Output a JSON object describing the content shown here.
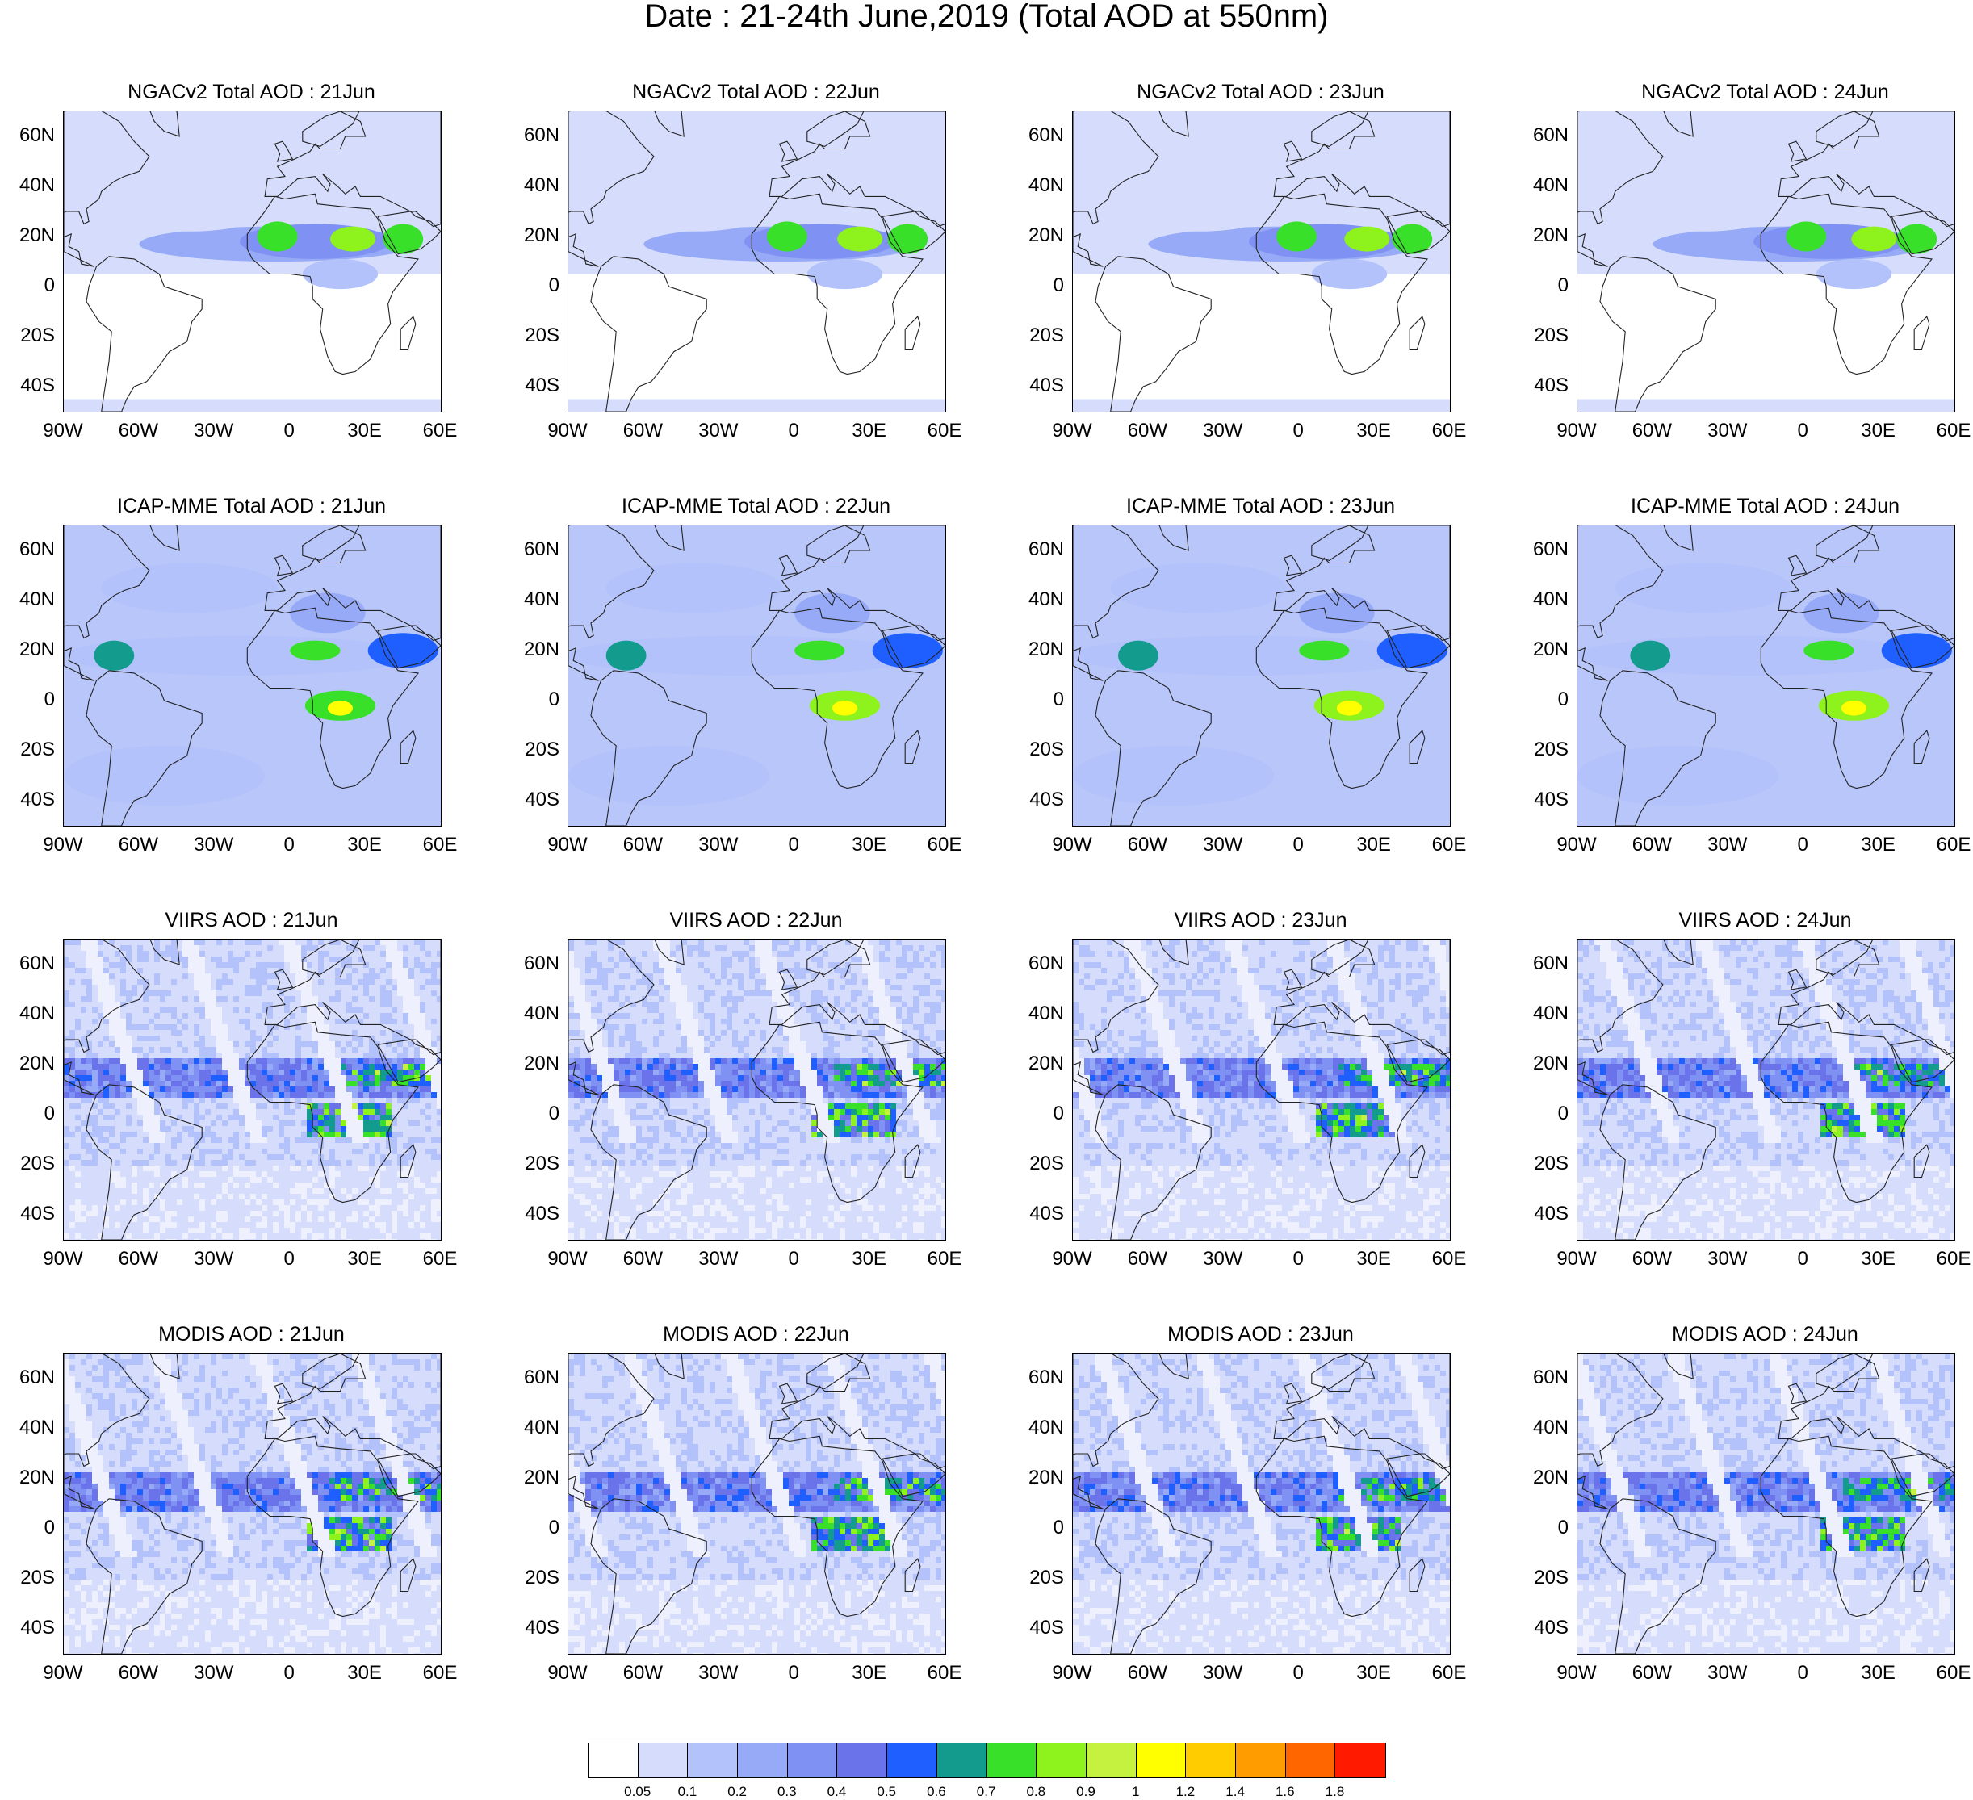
{
  "main_title": "Date : 21-24th June,2019 (Total AOD at 550nm)",
  "lat_ticks": [
    "60N",
    "40N",
    "20N",
    "0",
    "20S",
    "40S"
  ],
  "lon_ticks": [
    "90W",
    "60W",
    "30W",
    "0",
    "30E",
    "60E"
  ],
  "rows": [
    {
      "source": "NGACv2",
      "titles": [
        "NGACv2 Total AOD : 21Jun",
        "NGACv2 Total AOD : 22Jun",
        "NGACv2 Total AOD : 23Jun",
        "NGACv2 Total AOD : 24Jun"
      ],
      "style": "model-ngac"
    },
    {
      "source": "ICAP-MME",
      "titles": [
        "ICAP-MME Total AOD : 21Jun",
        "ICAP-MME Total AOD : 22Jun",
        "ICAP-MME Total AOD : 23Jun",
        "ICAP-MME Total AOD : 24Jun"
      ],
      "style": "model-icap"
    },
    {
      "source": "VIIRS",
      "titles": [
        "VIIRS AOD : 21Jun",
        "VIIRS AOD : 22Jun",
        "VIIRS AOD : 23Jun",
        "VIIRS AOD : 24Jun"
      ],
      "style": "satellite"
    },
    {
      "source": "MODIS",
      "titles": [
        "MODIS AOD : 21Jun",
        "MODIS AOD : 22Jun",
        "MODIS AOD : 23Jun",
        "MODIS AOD : 24Jun"
      ],
      "style": "satellite"
    }
  ],
  "colorbar": {
    "labels": [
      "0.05",
      "0.1",
      "0.2",
      "0.3",
      "0.4",
      "0.5",
      "0.6",
      "0.7",
      "0.8",
      "0.9",
      "1",
      "1.2",
      "1.4",
      "1.6",
      "1.8"
    ],
    "colors": [
      "#ffffff",
      "#d6ddfc",
      "#b3c2fa",
      "#96aaf7",
      "#7f91f2",
      "#6a73ea",
      "#1f5fff",
      "#139b8e",
      "#38e02a",
      "#8ef21c",
      "#c4f23f",
      "#ffff00",
      "#ffcc00",
      "#ff9c00",
      "#ff6600",
      "#ff1a00"
    ]
  }
}
